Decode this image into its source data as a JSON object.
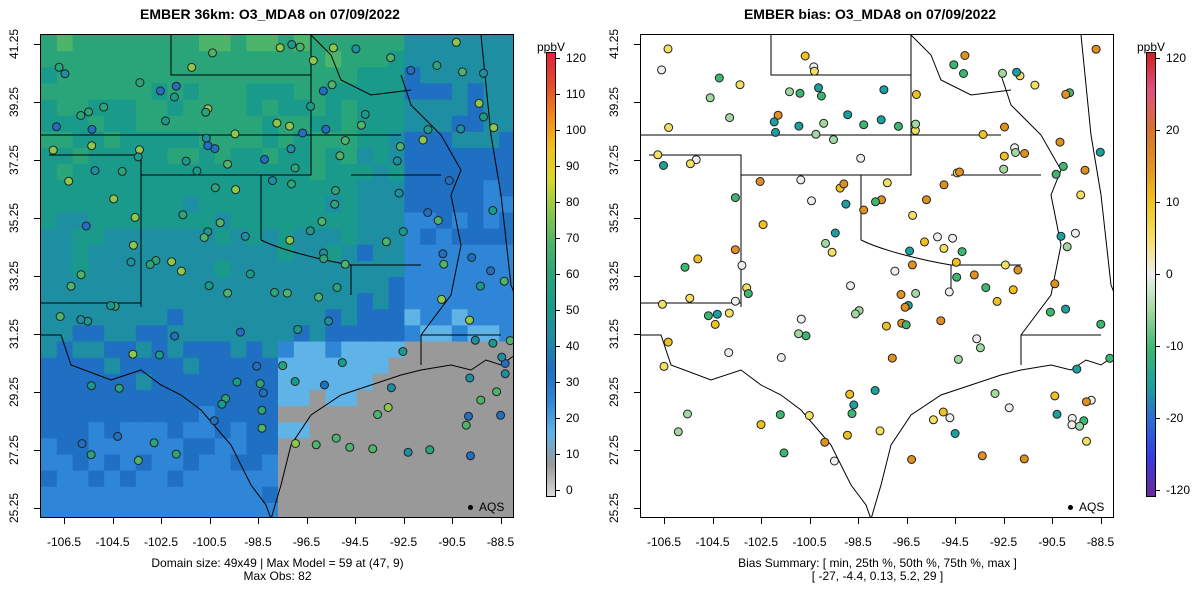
{
  "left": {
    "title": "EMBER 36km: O3_MDA8 on 07/09/2022",
    "colorbar_unit": "ppbV",
    "colorbar_ticks": [
      "120",
      "110",
      "100",
      "90",
      "80",
      "70",
      "60",
      "50",
      "40",
      "30",
      "20",
      "10",
      "0"
    ],
    "legend_label": "AQS",
    "footer_line1": "Domain size: 49x49 | Max Model = 59 at (47, 9)",
    "footer_line2": "Max Obs: 82"
  },
  "right": {
    "title": "EMBER bias: O3_MDA8 on 07/09/2022",
    "colorbar_unit": "ppbV",
    "colorbar_ticks": [
      "120",
      "20",
      "10",
      "0",
      "-10",
      "-20",
      "-120"
    ],
    "legend_label": "AQS",
    "footer_line1": "Bias Summary: [ min, 25th %, 50th %, 75th %, max ]",
    "footer_line2": "[ -27,   -4.4,   0.13,   5.2,   29 ]"
  },
  "axes": {
    "lat_ticks": [
      "41.25",
      "39.25",
      "37.25",
      "35.25",
      "33.25",
      "31.25",
      "29.25",
      "27.25",
      "25.25"
    ],
    "lon_ticks": [
      "-106.5",
      "-104.5",
      "-102.5",
      "-100.5",
      "-98.5",
      "-96.5",
      "-94.5",
      "-92.5",
      "-90.5",
      "-88.5"
    ]
  },
  "colors": {
    "model_scale": [
      "#d9d9d9",
      "#999999",
      "#5fb3e6",
      "#2f86d6",
      "#1f6fc2",
      "#1e8ea3",
      "#1a9a8a",
      "#2aa57a",
      "#4db56a",
      "#8cc84a",
      "#d8d82a",
      "#f0c020",
      "#f08a1a",
      "#e44a2a",
      "#e62040"
    ],
    "bias_scale": [
      "#6a2a9a",
      "#3a3ae0",
      "#2a6ad8",
      "#1aa0a0",
      "#3ab870",
      "#a0d8a0",
      "#eeeeee",
      "#f4e060",
      "#f0c020",
      "#e09020",
      "#d87030",
      "#e05080",
      "#d02020"
    ]
  }
}
